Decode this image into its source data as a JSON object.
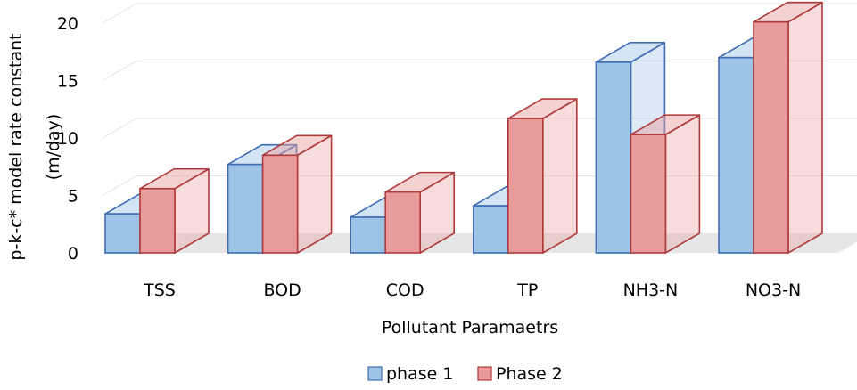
{
  "chart_data": {
    "type": "bar",
    "categories": [
      "TSS",
      "BOD",
      "COD",
      "TP",
      "NH3-N",
      "NO3-N"
    ],
    "series": [
      {
        "name": "phase 1",
        "values": [
          3.4,
          7.7,
          3.1,
          4.1,
          16.6,
          17.0
        ],
        "color": "#9DC3E6",
        "edge": "#3E6DB5"
      },
      {
        "name": "Phase 2",
        "values": [
          5.6,
          8.5,
          5.3,
          11.7,
          10.3,
          20.1
        ],
        "color": "#E89B9B",
        "edge": "#B03A3A"
      }
    ],
    "title": "",
    "xlabel": "Pollutant Paramaetrs",
    "ylabel_line1": "p-k-c* model rate constant",
    "ylabel_line2": "(m/day)",
    "ylim": [
      0,
      20
    ],
    "yticks": [
      "0",
      "5",
      "10",
      "15",
      "20"
    ],
    "grid": true,
    "legend_position": "bottom"
  }
}
